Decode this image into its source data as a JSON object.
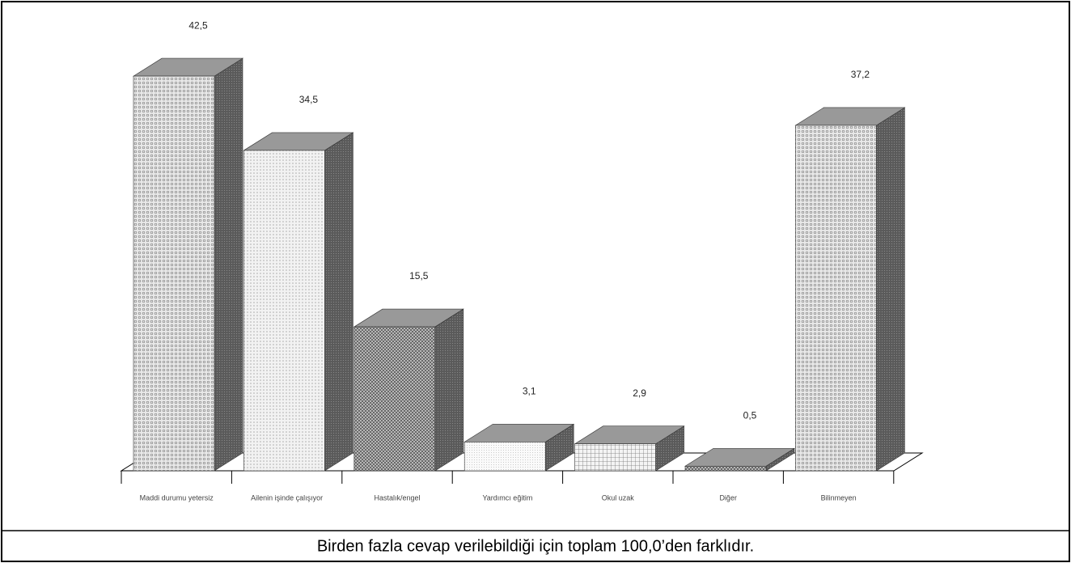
{
  "chart_data": {
    "type": "bar3d",
    "categories": [
      "Maddi durumu yetersiz",
      "Ailenin işinde çalışıyor",
      "Hastalık/engel",
      "Yardımcı eğitim",
      "Okul uzak",
      "Diğer",
      "Bilinmeyen"
    ],
    "values": [
      42.5,
      34.5,
      15.5,
      3.1,
      2.9,
      0.5,
      37.2
    ],
    "value_labels": [
      "42,5",
      "34,5",
      "15,5",
      "3,1",
      "2,9",
      "0,5",
      "37,2"
    ],
    "footnote": "Birden fazla cevap verilebildiği için toplam 100,0’den farklıdır."
  }
}
